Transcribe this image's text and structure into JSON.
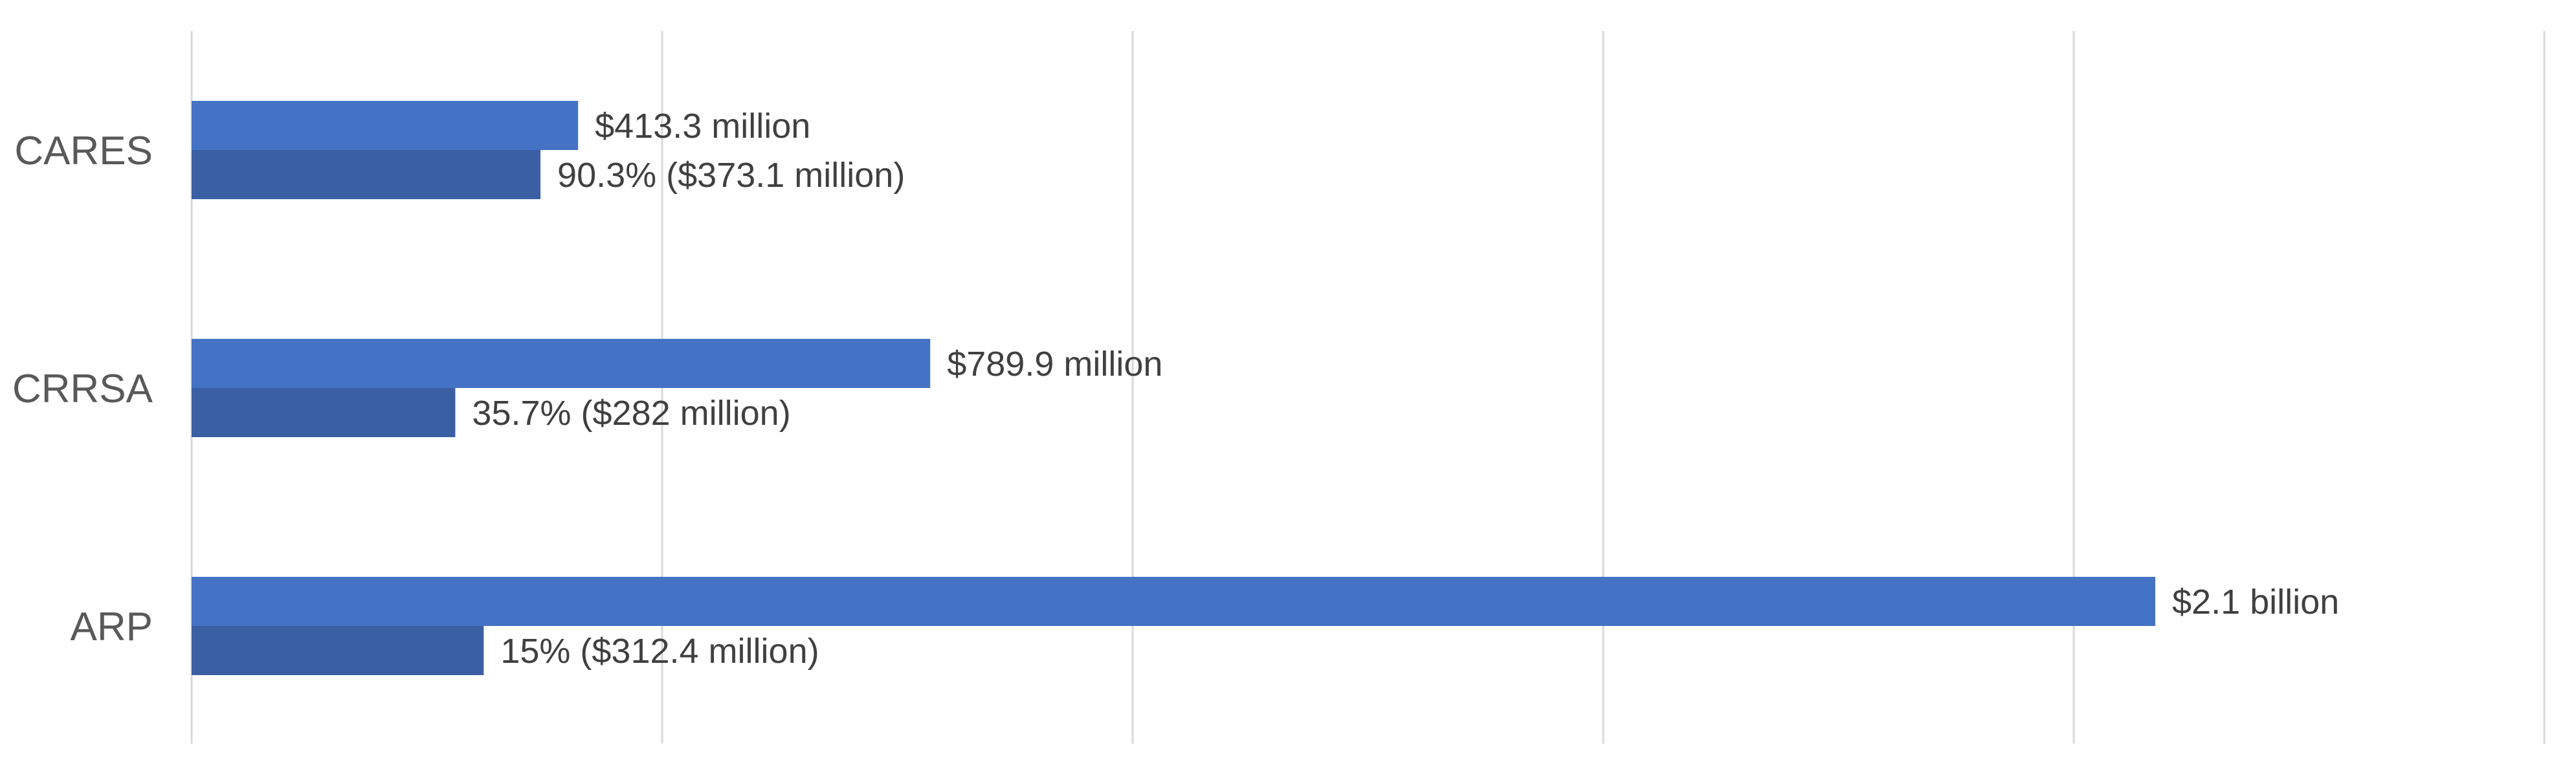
{
  "chart_data": {
    "type": "bar",
    "orientation": "horizontal",
    "categories": [
      "CARES",
      "CRRSA",
      "ARP"
    ],
    "series": [
      {
        "values": [
          413.3,
          789.9,
          2100
        ],
        "labels": [
          "$413.3 million",
          "$789.9 million",
          "$2.1 billion"
        ],
        "color": "#4472c4"
      },
      {
        "values": [
          373.1,
          282,
          312.4
        ],
        "labels": [
          "90.3% ($373.1 million)",
          "35.7% ($282 million)",
          "15% ($312.4 million)"
        ],
        "color": "#3a5fa3"
      }
    ],
    "xlim": [
      0,
      2500
    ],
    "grid": true,
    "legend": "none",
    "xlabel": "",
    "ylabel": ""
  }
}
